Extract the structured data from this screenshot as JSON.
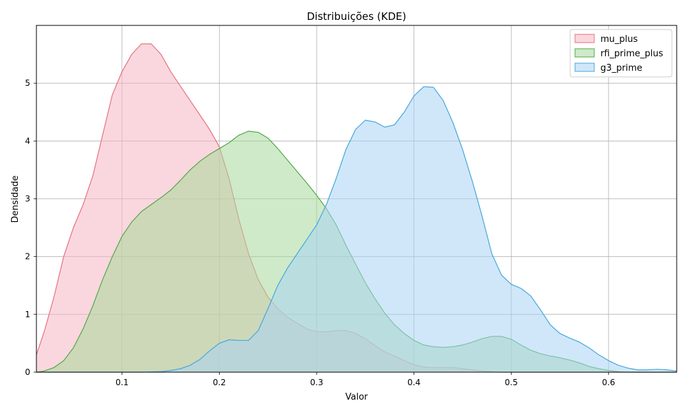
{
  "chart_data": {
    "type": "area",
    "title": "Distribuições (KDE)",
    "xlabel": "Valor",
    "ylabel": "Densidade",
    "xlim": [
      0.012,
      0.67
    ],
    "ylim": [
      0,
      6.0
    ],
    "xticks": [
      0.1,
      0.2,
      0.3,
      0.4,
      0.5,
      0.6
    ],
    "xtick_labels": [
      "0.1",
      "0.2",
      "0.3",
      "0.4",
      "0.5",
      "0.6"
    ],
    "yticks": [
      0,
      1,
      2,
      3,
      4,
      5
    ],
    "ytick_labels": [
      "0",
      "1",
      "2",
      "3",
      "4",
      "5"
    ],
    "grid": true,
    "legend_position": "top-right",
    "series": [
      {
        "name": "mu_plus",
        "line_color": "#e8707e",
        "fill_color": "#f6b6c2",
        "points": [
          [
            0.012,
            0.3
          ],
          [
            0.02,
            0.7
          ],
          [
            0.03,
            1.3
          ],
          [
            0.04,
            2.0
          ],
          [
            0.05,
            2.5
          ],
          [
            0.06,
            2.9
          ],
          [
            0.07,
            3.4
          ],
          [
            0.08,
            4.1
          ],
          [
            0.09,
            4.8
          ],
          [
            0.1,
            5.2
          ],
          [
            0.11,
            5.5
          ],
          [
            0.12,
            5.68
          ],
          [
            0.13,
            5.68
          ],
          [
            0.14,
            5.5
          ],
          [
            0.15,
            5.2
          ],
          [
            0.16,
            4.95
          ],
          [
            0.17,
            4.7
          ],
          [
            0.18,
            4.45
          ],
          [
            0.19,
            4.2
          ],
          [
            0.2,
            3.9
          ],
          [
            0.21,
            3.35
          ],
          [
            0.22,
            2.65
          ],
          [
            0.23,
            2.05
          ],
          [
            0.24,
            1.6
          ],
          [
            0.25,
            1.3
          ],
          [
            0.26,
            1.1
          ],
          [
            0.27,
            0.95
          ],
          [
            0.28,
            0.85
          ],
          [
            0.29,
            0.75
          ],
          [
            0.3,
            0.7
          ],
          [
            0.31,
            0.7
          ],
          [
            0.32,
            0.72
          ],
          [
            0.33,
            0.72
          ],
          [
            0.34,
            0.67
          ],
          [
            0.35,
            0.58
          ],
          [
            0.36,
            0.46
          ],
          [
            0.37,
            0.35
          ],
          [
            0.38,
            0.28
          ],
          [
            0.39,
            0.2
          ],
          [
            0.4,
            0.13
          ],
          [
            0.41,
            0.09
          ],
          [
            0.42,
            0.08
          ],
          [
            0.43,
            0.08
          ],
          [
            0.44,
            0.08
          ],
          [
            0.45,
            0.06
          ],
          [
            0.46,
            0.04
          ],
          [
            0.47,
            0.02
          ],
          [
            0.48,
            0.01
          ],
          [
            0.49,
            0.0
          ],
          [
            0.67,
            0.0
          ]
        ]
      },
      {
        "name": "rfi_prime_plus",
        "line_color": "#4fa845",
        "fill_color": "#a8d99a",
        "points": [
          [
            0.012,
            0.0
          ],
          [
            0.02,
            0.02
          ],
          [
            0.03,
            0.08
          ],
          [
            0.04,
            0.2
          ],
          [
            0.05,
            0.42
          ],
          [
            0.06,
            0.75
          ],
          [
            0.07,
            1.15
          ],
          [
            0.08,
            1.6
          ],
          [
            0.09,
            2.0
          ],
          [
            0.1,
            2.35
          ],
          [
            0.11,
            2.6
          ],
          [
            0.12,
            2.78
          ],
          [
            0.13,
            2.9
          ],
          [
            0.14,
            3.02
          ],
          [
            0.15,
            3.15
          ],
          [
            0.16,
            3.32
          ],
          [
            0.17,
            3.5
          ],
          [
            0.18,
            3.65
          ],
          [
            0.19,
            3.77
          ],
          [
            0.2,
            3.87
          ],
          [
            0.21,
            3.97
          ],
          [
            0.22,
            4.1
          ],
          [
            0.23,
            4.17
          ],
          [
            0.24,
            4.15
          ],
          [
            0.25,
            4.05
          ],
          [
            0.26,
            3.87
          ],
          [
            0.27,
            3.67
          ],
          [
            0.28,
            3.47
          ],
          [
            0.29,
            3.27
          ],
          [
            0.3,
            3.06
          ],
          [
            0.31,
            2.83
          ],
          [
            0.32,
            2.55
          ],
          [
            0.33,
            2.2
          ],
          [
            0.34,
            1.87
          ],
          [
            0.35,
            1.55
          ],
          [
            0.36,
            1.27
          ],
          [
            0.37,
            1.02
          ],
          [
            0.38,
            0.82
          ],
          [
            0.39,
            0.67
          ],
          [
            0.4,
            0.55
          ],
          [
            0.41,
            0.47
          ],
          [
            0.42,
            0.44
          ],
          [
            0.43,
            0.43
          ],
          [
            0.44,
            0.44
          ],
          [
            0.45,
            0.47
          ],
          [
            0.46,
            0.52
          ],
          [
            0.47,
            0.58
          ],
          [
            0.48,
            0.62
          ],
          [
            0.49,
            0.62
          ],
          [
            0.5,
            0.57
          ],
          [
            0.51,
            0.47
          ],
          [
            0.52,
            0.38
          ],
          [
            0.53,
            0.32
          ],
          [
            0.54,
            0.28
          ],
          [
            0.55,
            0.25
          ],
          [
            0.56,
            0.21
          ],
          [
            0.57,
            0.16
          ],
          [
            0.58,
            0.1
          ],
          [
            0.59,
            0.06
          ],
          [
            0.6,
            0.03
          ],
          [
            0.61,
            0.01
          ],
          [
            0.62,
            0.0
          ],
          [
            0.67,
            0.0
          ]
        ]
      },
      {
        "name": "g3_prime",
        "line_color": "#44a7dc",
        "fill_color": "#a9d4f4",
        "points": [
          [
            0.012,
            0.0
          ],
          [
            0.12,
            0.0
          ],
          [
            0.14,
            0.01
          ],
          [
            0.15,
            0.03
          ],
          [
            0.16,
            0.06
          ],
          [
            0.17,
            0.12
          ],
          [
            0.18,
            0.22
          ],
          [
            0.19,
            0.37
          ],
          [
            0.2,
            0.5
          ],
          [
            0.21,
            0.56
          ],
          [
            0.22,
            0.55
          ],
          [
            0.23,
            0.55
          ],
          [
            0.24,
            0.72
          ],
          [
            0.25,
            1.1
          ],
          [
            0.26,
            1.5
          ],
          [
            0.27,
            1.8
          ],
          [
            0.28,
            2.05
          ],
          [
            0.29,
            2.3
          ],
          [
            0.3,
            2.55
          ],
          [
            0.31,
            2.9
          ],
          [
            0.32,
            3.35
          ],
          [
            0.33,
            3.85
          ],
          [
            0.34,
            4.2
          ],
          [
            0.35,
            4.36
          ],
          [
            0.36,
            4.33
          ],
          [
            0.37,
            4.24
          ],
          [
            0.38,
            4.28
          ],
          [
            0.39,
            4.5
          ],
          [
            0.4,
            4.78
          ],
          [
            0.41,
            4.94
          ],
          [
            0.42,
            4.93
          ],
          [
            0.43,
            4.7
          ],
          [
            0.44,
            4.32
          ],
          [
            0.45,
            3.85
          ],
          [
            0.46,
            3.3
          ],
          [
            0.47,
            2.7
          ],
          [
            0.48,
            2.05
          ],
          [
            0.49,
            1.68
          ],
          [
            0.5,
            1.52
          ],
          [
            0.51,
            1.45
          ],
          [
            0.52,
            1.32
          ],
          [
            0.53,
            1.08
          ],
          [
            0.54,
            0.82
          ],
          [
            0.55,
            0.67
          ],
          [
            0.56,
            0.59
          ],
          [
            0.57,
            0.52
          ],
          [
            0.58,
            0.42
          ],
          [
            0.59,
            0.3
          ],
          [
            0.6,
            0.2
          ],
          [
            0.61,
            0.12
          ],
          [
            0.62,
            0.07
          ],
          [
            0.63,
            0.04
          ],
          [
            0.64,
            0.04
          ],
          [
            0.65,
            0.05
          ],
          [
            0.66,
            0.04
          ],
          [
            0.67,
            0.02
          ]
        ]
      }
    ]
  }
}
